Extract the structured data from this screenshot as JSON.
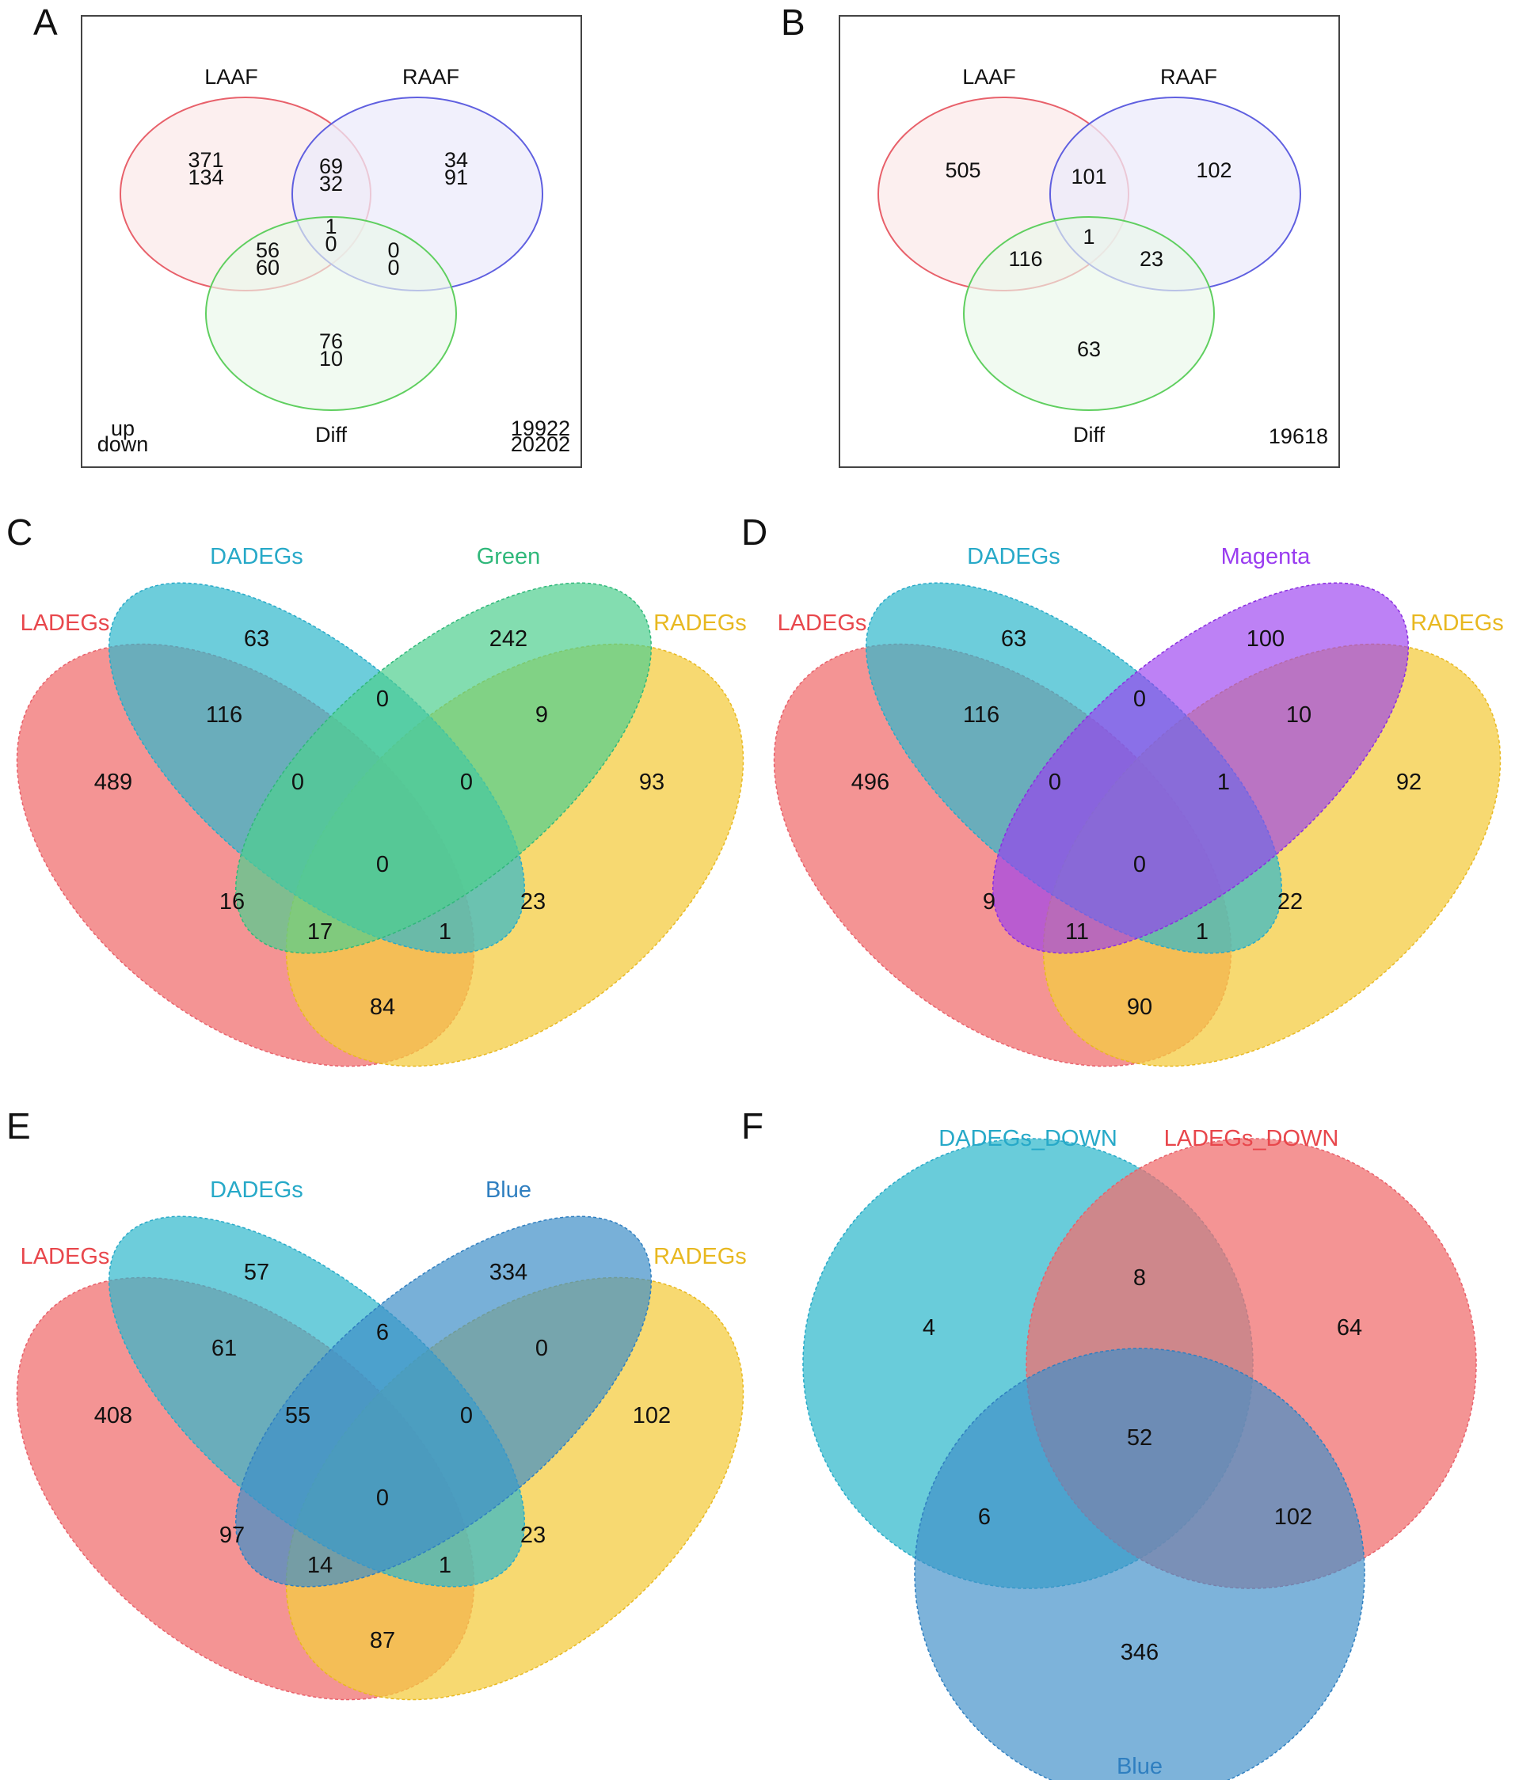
{
  "panels": {
    "A": {
      "letter": "A",
      "sets": {
        "s1": "LAAF",
        "s2": "RAAF",
        "s3": "Diff"
      },
      "regions": {
        "only_s1": [
          "371",
          "134"
        ],
        "s1_s2": [
          "69",
          "32"
        ],
        "only_s2": [
          "34",
          "91"
        ],
        "s1_s2_s3": [
          "1",
          "0"
        ],
        "s1_s3": [
          "56",
          "60"
        ],
        "s2_s3": [
          "0",
          "0"
        ],
        "only_s3": [
          "76",
          "10"
        ]
      },
      "legend": [
        "up",
        "down"
      ],
      "outside": [
        "19922",
        "20202"
      ]
    },
    "B": {
      "letter": "B",
      "sets": {
        "s1": "LAAF",
        "s2": "RAAF",
        "s3": "Diff"
      },
      "regions": {
        "only_s1": "505",
        "s1_s2": "101",
        "only_s2": "102",
        "s1_s2_s3": "1",
        "s1_s3": "116",
        "s2_s3": "23",
        "only_s3": "63"
      },
      "outside": "19618"
    },
    "C": {
      "letter": "C",
      "sets": [
        "LADEGs",
        "DADEGs",
        "Green",
        "RADEGs"
      ],
      "regions": [
        "489",
        "63",
        "242",
        "93",
        "116",
        "0",
        "9",
        "0",
        "0",
        "16",
        "23",
        "0",
        "17",
        "1",
        "84"
      ]
    },
    "D": {
      "letter": "D",
      "sets": [
        "LADEGs",
        "DADEGs",
        "Magenta",
        "RADEGs"
      ],
      "regions": [
        "496",
        "63",
        "100",
        "92",
        "116",
        "0",
        "10",
        "0",
        "1",
        "9",
        "22",
        "0",
        "11",
        "1",
        "90"
      ]
    },
    "E": {
      "letter": "E",
      "sets": [
        "LADEGs",
        "DADEGs",
        "Blue",
        "RADEGs"
      ],
      "regions": [
        "408",
        "57",
        "334",
        "102",
        "61",
        "6",
        "0",
        "55",
        "0",
        "97",
        "23",
        "0",
        "14",
        "1",
        "87"
      ]
    },
    "F": {
      "letter": "F",
      "sets": [
        "DADEGs_DOWN",
        "LADEGs_DOWN",
        "Blue"
      ],
      "regions": [
        "4",
        "8",
        "64",
        "52",
        "6",
        "102",
        "346"
      ]
    }
  },
  "colors": {
    "three_set_outline": [
      "#e8606a",
      "#5f5fe0",
      "#5fcf5f"
    ],
    "three_set_fill": [
      "#fbeaea",
      "#ecebfb",
      "#eaf8ea"
    ],
    "ladegs": "#f07070",
    "dadegs": "#2fb8cc",
    "radegs": "#f4cc42",
    "green_module": "#4fcf8f",
    "magenta_module": "#9a3df0",
    "blue_module": "#3f8fc8",
    "label_ladegs": "#e8474c",
    "label_dadegs": "#27a9c8",
    "label_radegs": "#e8b820",
    "label_green": "#2fb87a",
    "label_magenta": "#9a3df0",
    "label_blue": "#2f7fc0"
  }
}
